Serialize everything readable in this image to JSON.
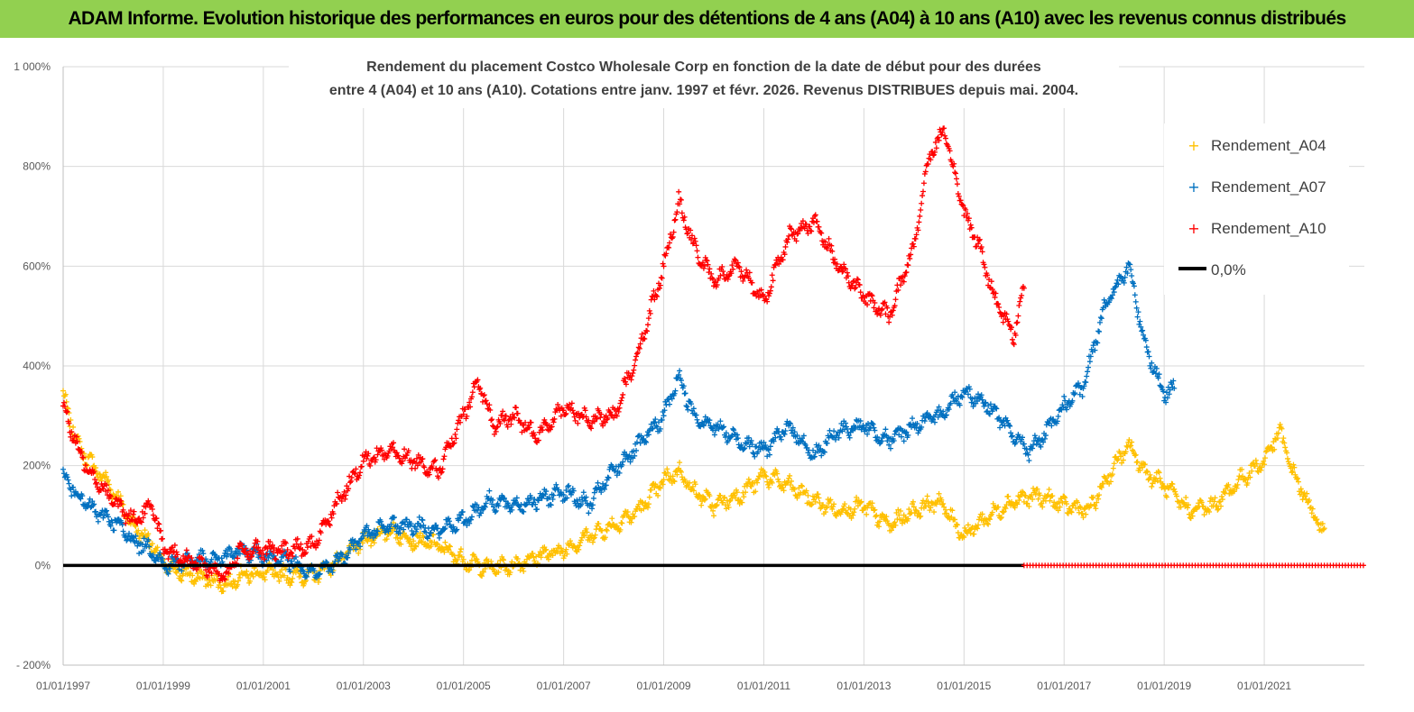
{
  "header": {
    "title": "ADAM Informe. Evolution historique des performances en euros pour des détentions de 4 ans (A04) à 10 ans (A10) avec les revenus connus distribués"
  },
  "colors": {
    "header_bg": "#92d050",
    "a04": "#ffc000",
    "a07": "#0070c0",
    "a10": "#ff0000",
    "zero": "#000000",
    "grid": "#d9d9d9"
  },
  "chart_data": {
    "type": "scatter",
    "title_lines": [
      "Rendement du placement Costco Wholesale Corp en fonction de la date de début pour des durées",
      "entre 4 (A04) et 10 ans (A10).  Cotations entre janv. 1997 et févr. 2026. Revenus DISTRIBUES depuis mai. 2004."
    ],
    "xlim": [
      1997.0,
      2023.0
    ],
    "ylim": [
      -200,
      1000
    ],
    "y_ticks": [
      -200,
      0,
      200,
      400,
      600,
      800,
      1000
    ],
    "y_tick_labels": [
      "- 200%",
      "0%",
      "200%",
      "400%",
      "600%",
      "800%",
      "1 000%"
    ],
    "x_ticks": [
      1997,
      1999,
      2001,
      2003,
      2005,
      2007,
      2009,
      2011,
      2013,
      2015,
      2017,
      2019,
      2021
    ],
    "x_tick_labels": [
      "01/01/1997",
      "01/01/1999",
      "01/01/2001",
      "01/01/2003",
      "01/01/2005",
      "01/01/2007",
      "01/01/2009",
      "01/01/2011",
      "01/01/2013",
      "01/01/2015",
      "01/01/2017",
      "01/01/2019",
      "01/01/2021"
    ],
    "legend": {
      "position": "right",
      "items": [
        "Rendement_A04",
        "Rendement_A07",
        "Rendement_A10",
        "0,0%"
      ]
    },
    "series": [
      {
        "name": "Rendement_A04",
        "color": "#ffc000",
        "x": [
          1997.0,
          1997.3,
          1997.6,
          1998.0,
          1998.4,
          1998.8,
          1999.0,
          1999.5,
          2000.0,
          2000.3,
          2000.5,
          2001.0,
          2001.5,
          2002.0,
          2002.5,
          2003.0,
          2003.5,
          2004.0,
          2004.5,
          2005.0,
          2005.5,
          2006.0,
          2006.5,
          2007.0,
          2007.5,
          2008.0,
          2008.5,
          2009.0,
          2009.3,
          2009.6,
          2010.0,
          2010.5,
          2011.0,
          2011.5,
          2012.0,
          2012.5,
          2013.0,
          2013.5,
          2014.0,
          2014.5,
          2015.0,
          2015.5,
          2016.0,
          2016.5,
          2017.0,
          2017.5,
          2018.0,
          2018.3,
          2018.6,
          2019.0,
          2019.5,
          2020.0,
          2020.5,
          2021.0,
          2021.3,
          2021.6,
          2022.0,
          2022.2
        ],
        "y": [
          340,
          240,
          200,
          150,
          80,
          40,
          0,
          -20,
          -30,
          -40,
          -20,
          -15,
          -20,
          -20,
          10,
          50,
          70,
          50,
          40,
          10,
          -5,
          0,
          20,
          30,
          60,
          80,
          110,
          170,
          190,
          150,
          120,
          140,
          180,
          160,
          130,
          110,
          120,
          80,
          110,
          130,
          60,
          100,
          130,
          140,
          120,
          110,
          200,
          240,
          190,
          160,
          110,
          120,
          170,
          210,
          270,
          180,
          100,
          60
        ]
      },
      {
        "name": "Rendement_A07",
        "color": "#0070c0",
        "x": [
          1997.0,
          1997.3,
          1997.6,
          1998.0,
          1998.4,
          1998.8,
          1999.0,
          1999.5,
          2000.0,
          2000.3,
          2000.5,
          2001.0,
          2001.5,
          2002.0,
          2002.5,
          2003.0,
          2003.5,
          2004.0,
          2004.5,
          2005.0,
          2005.5,
          2006.0,
          2006.5,
          2007.0,
          2007.5,
          2008.0,
          2008.5,
          2009.0,
          2009.3,
          2009.6,
          2010.0,
          2010.5,
          2011.0,
          2011.5,
          2012.0,
          2012.5,
          2013.0,
          2013.5,
          2014.0,
          2014.5,
          2015.0,
          2015.5,
          2016.0,
          2016.3,
          2016.6,
          2017.0,
          2017.4,
          2017.8,
          2018.0,
          2018.3,
          2018.6,
          2019.0,
          2019.2
        ],
        "y": [
          180,
          140,
          110,
          90,
          50,
          30,
          0,
          10,
          10,
          20,
          30,
          20,
          10,
          -20,
          10,
          60,
          80,
          80,
          70,
          90,
          130,
          120,
          130,
          150,
          120,
          190,
          240,
          300,
          380,
          300,
          280,
          250,
          230,
          280,
          220,
          270,
          280,
          250,
          280,
          300,
          350,
          320,
          260,
          230,
          260,
          320,
          360,
          520,
          550,
          600,
          450,
          340,
          360
        ]
      },
      {
        "name": "Rendement_A10",
        "color": "#ff0000",
        "x": [
          1997.0,
          1997.3,
          1997.6,
          1998.0,
          1998.4,
          1998.8,
          1999.0,
          1999.5,
          2000.0,
          2000.3,
          2000.5,
          2001.0,
          2001.5,
          2002.0,
          2002.5,
          2003.0,
          2003.5,
          2004.0,
          2004.5,
          2005.0,
          2005.3,
          2005.6,
          2006.0,
          2006.5,
          2007.0,
          2007.5,
          2008.0,
          2008.5,
          2009.0,
          2009.3,
          2009.6,
          2010.0,
          2010.5,
          2011.0,
          2011.5,
          2012.0,
          2012.5,
          2013.0,
          2013.5,
          2014.0,
          2014.3,
          2014.6,
          2015.0,
          2015.3,
          2015.6,
          2016.0,
          2016.2
        ],
        "y": [
          320,
          230,
          180,
          130,
          90,
          120,
          30,
          10,
          -10,
          -20,
          30,
          30,
          30,
          40,
          130,
          210,
          230,
          210,
          190,
          300,
          370,
          280,
          300,
          260,
          320,
          290,
          300,
          430,
          600,
          730,
          640,
          570,
          600,
          530,
          660,
          690,
          600,
          540,
          500,
          640,
          820,
          870,
          710,
          640,
          540,
          460,
          560
        ]
      },
      {
        "name": "0,0%",
        "color": "#000000",
        "x": [
          1997.0,
          2016.2
        ],
        "y": [
          0,
          0
        ]
      }
    ],
    "zero_markers": {
      "name": "Rendement_A10",
      "x_from": 2016.2,
      "x_to": 2023.0,
      "y": 0
    }
  }
}
